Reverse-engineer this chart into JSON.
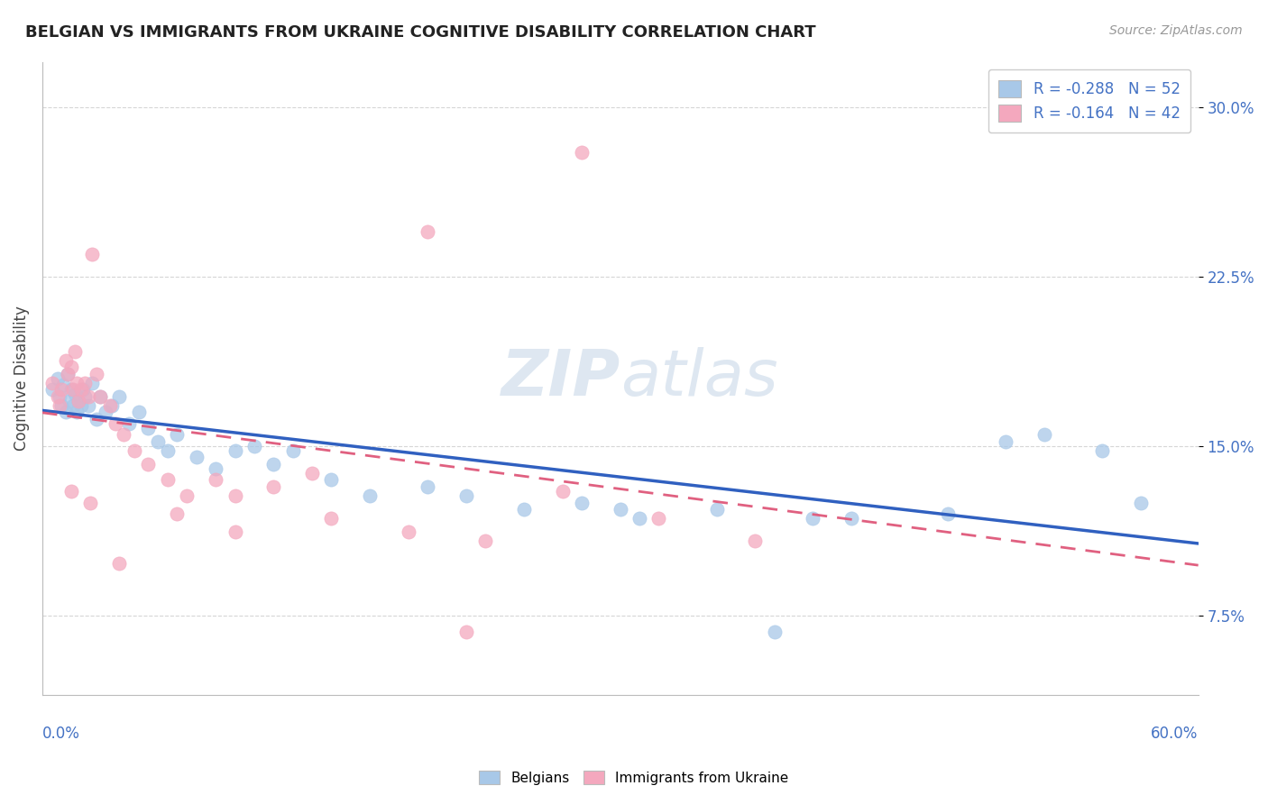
{
  "title": "BELGIAN VS IMMIGRANTS FROM UKRAINE COGNITIVE DISABILITY CORRELATION CHART",
  "source": "Source: ZipAtlas.com",
  "ylabel": "Cognitive Disability",
  "xmin": 0.0,
  "xmax": 0.6,
  "ymin": 0.04,
  "ymax": 0.32,
  "yticks": [
    0.075,
    0.15,
    0.225,
    0.3
  ],
  "ytick_labels": [
    "7.5%",
    "15.0%",
    "22.5%",
    "30.0%"
  ],
  "legend_r1": "R = -0.288",
  "legend_n1": "N = 52",
  "legend_r2": "R = -0.164",
  "legend_n2": "N = 42",
  "color_belgian": "#a8c8e8",
  "color_ukraine": "#f4a8be",
  "color_belgian_line": "#3060c0",
  "color_ukraine_line": "#e06080",
  "watermark_color": "#c8d8e8",
  "background_color": "#ffffff",
  "grid_color": "#cccccc",
  "belgians_x": [
    0.005,
    0.008,
    0.009,
    0.01,
    0.011,
    0.012,
    0.013,
    0.014,
    0.015,
    0.016,
    0.017,
    0.018,
    0.019,
    0.02,
    0.021,
    0.022,
    0.024,
    0.026,
    0.028,
    0.03,
    0.033,
    0.036,
    0.04,
    0.045,
    0.05,
    0.055,
    0.06,
    0.065,
    0.07,
    0.08,
    0.09,
    0.1,
    0.11,
    0.12,
    0.13,
    0.15,
    0.17,
    0.2,
    0.22,
    0.25,
    0.28,
    0.31,
    0.35,
    0.38,
    0.42,
    0.47,
    0.52,
    0.55,
    0.57,
    0.3,
    0.4,
    0.5
  ],
  "belgians_y": [
    0.175,
    0.18,
    0.172,
    0.168,
    0.177,
    0.165,
    0.182,
    0.17,
    0.175,
    0.168,
    0.173,
    0.165,
    0.17,
    0.168,
    0.175,
    0.172,
    0.168,
    0.178,
    0.162,
    0.172,
    0.165,
    0.168,
    0.172,
    0.16,
    0.165,
    0.158,
    0.152,
    0.148,
    0.155,
    0.145,
    0.14,
    0.148,
    0.15,
    0.142,
    0.148,
    0.135,
    0.128,
    0.132,
    0.128,
    0.122,
    0.125,
    0.118,
    0.122,
    0.068,
    0.118,
    0.12,
    0.155,
    0.148,
    0.125,
    0.122,
    0.118,
    0.152
  ],
  "ukraine_x": [
    0.005,
    0.008,
    0.009,
    0.01,
    0.012,
    0.013,
    0.015,
    0.016,
    0.017,
    0.018,
    0.019,
    0.02,
    0.022,
    0.024,
    0.026,
    0.028,
    0.03,
    0.035,
    0.038,
    0.042,
    0.048,
    0.055,
    0.065,
    0.075,
    0.09,
    0.1,
    0.12,
    0.15,
    0.19,
    0.23,
    0.27,
    0.32,
    0.37,
    0.28,
    0.2,
    0.14,
    0.1,
    0.07,
    0.04,
    0.025,
    0.015,
    0.22
  ],
  "ukraine_y": [
    0.178,
    0.172,
    0.168,
    0.175,
    0.188,
    0.182,
    0.185,
    0.175,
    0.192,
    0.178,
    0.17,
    0.175,
    0.178,
    0.172,
    0.235,
    0.182,
    0.172,
    0.168,
    0.16,
    0.155,
    0.148,
    0.142,
    0.135,
    0.128,
    0.135,
    0.128,
    0.132,
    0.118,
    0.112,
    0.108,
    0.13,
    0.118,
    0.108,
    0.28,
    0.245,
    0.138,
    0.112,
    0.12,
    0.098,
    0.125,
    0.13,
    0.068
  ]
}
